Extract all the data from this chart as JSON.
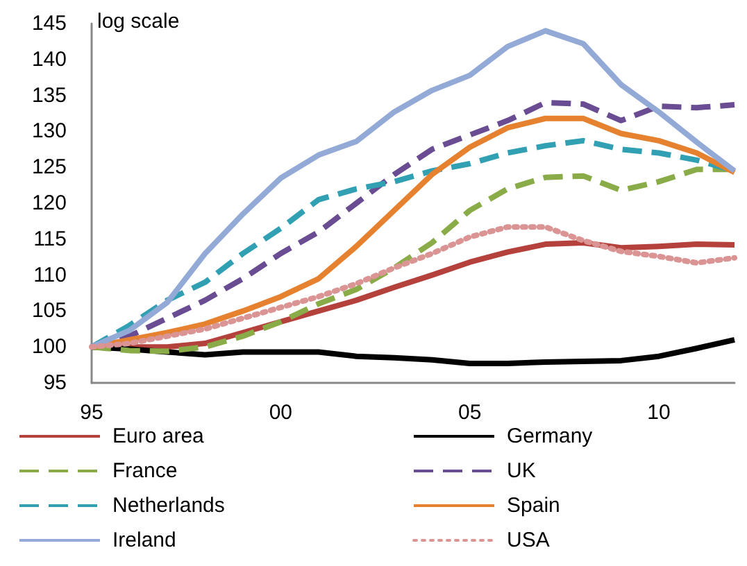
{
  "chart_data": {
    "type": "line",
    "annotations": [
      "log scale"
    ],
    "x": [
      1995,
      1996,
      1997,
      1998,
      1999,
      2000,
      2001,
      2002,
      2003,
      2004,
      2005,
      2006,
      2007,
      2008,
      2009,
      2010,
      2011,
      2012
    ],
    "xlim": [
      1995,
      2012
    ],
    "xticks": [
      {
        "value": 1995,
        "label": "95"
      },
      {
        "value": 2000,
        "label": "00"
      },
      {
        "value": 2005,
        "label": "05"
      },
      {
        "value": 2010,
        "label": "10"
      }
    ],
    "ylim": [
      95,
      145
    ],
    "yticks": [
      95,
      100,
      105,
      110,
      115,
      120,
      125,
      130,
      135,
      140,
      145
    ],
    "grid": false,
    "legend": "bottom",
    "marker": "none",
    "series": [
      {
        "name": "Euro area",
        "color": "#b5413c",
        "line_style": "solid",
        "values": [
          100,
          100,
          100,
          100.5,
          102,
          103.5,
          105,
          106.5,
          108.3,
          110,
          111.8,
          113.2,
          114.3,
          114.5,
          113.8,
          114,
          114.3,
          114.2
        ]
      },
      {
        "name": "Germany",
        "color": "#000000",
        "line_style": "solid",
        "values": [
          100,
          99.7,
          99.3,
          98.9,
          99.3,
          99.3,
          99.3,
          98.7,
          98.5,
          98.2,
          97.7,
          97.7,
          97.9,
          98,
          98.1,
          98.7,
          99.8,
          101
        ]
      },
      {
        "name": "France",
        "color": "#8aac48",
        "line_style": "dashed",
        "values": [
          100,
          99.5,
          99.4,
          100,
          101.5,
          103.5,
          106,
          108,
          111,
          114.5,
          119,
          122,
          123.6,
          123.8,
          121.8,
          123,
          124.7,
          124.7
        ]
      },
      {
        "name": "UK",
        "color": "#6a4c93",
        "line_style": "dashed",
        "values": [
          100,
          101.5,
          104,
          106.5,
          109.5,
          113,
          116,
          120,
          124,
          127.5,
          129.5,
          131.5,
          134,
          133.8,
          131.5,
          133.5,
          133.3,
          133.7
        ]
      },
      {
        "name": "Netherlands",
        "color": "#31a0b3",
        "line_style": "dashed",
        "values": [
          100,
          103,
          106.5,
          109,
          113,
          116.5,
          120.5,
          122,
          123,
          124.5,
          125.5,
          127,
          128,
          128.7,
          127.5,
          127,
          126,
          124.5
        ]
      },
      {
        "name": "Spain",
        "color": "#e6822f",
        "line_style": "solid",
        "values": [
          100,
          101,
          102,
          103.2,
          105,
          107,
          109.5,
          114,
          119,
          124,
          127.8,
          130.5,
          131.8,
          131.8,
          129.7,
          128.7,
          127,
          124.3
        ]
      },
      {
        "name": "Ireland",
        "color": "#93a9d6",
        "line_style": "solid",
        "values": [
          100,
          102.3,
          106.2,
          113,
          118.5,
          123.5,
          126.7,
          128.6,
          132.7,
          135.7,
          137.8,
          141.8,
          144,
          142.2,
          136.5,
          132.7,
          128.5,
          124.5
        ]
      },
      {
        "name": "USA",
        "color": "#d99493",
        "line_style": "dotted",
        "values": [
          100,
          100.5,
          101.5,
          102.5,
          104,
          105.5,
          107,
          108.8,
          111,
          113,
          115.3,
          116.7,
          116.7,
          114.8,
          113.3,
          112.6,
          111.7,
          112.4
        ]
      }
    ]
  }
}
